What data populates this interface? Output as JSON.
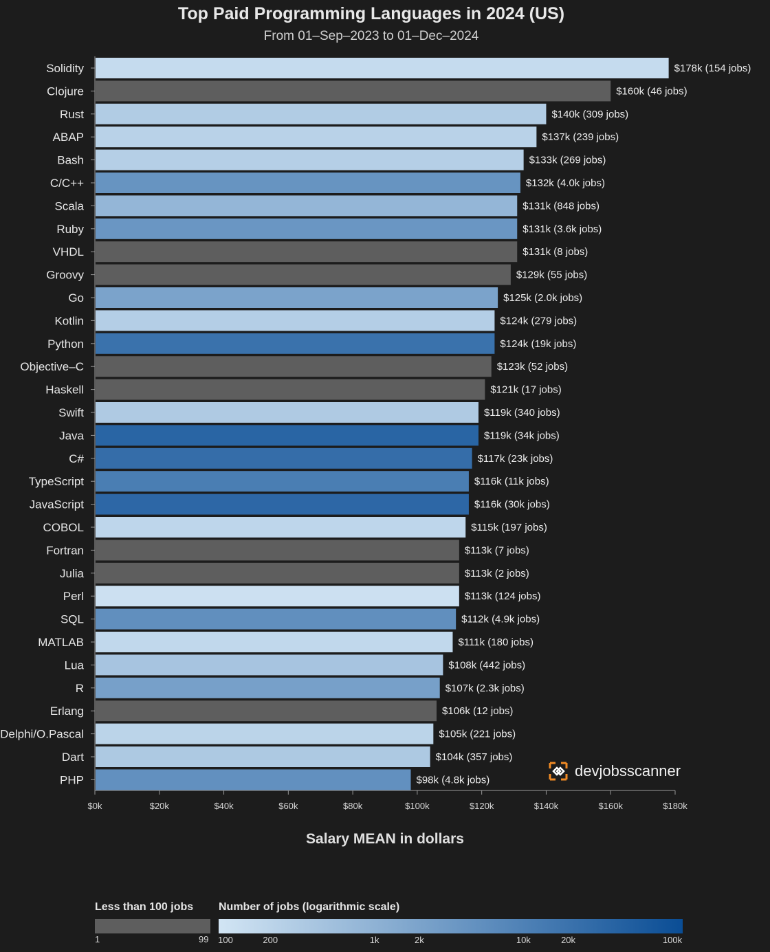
{
  "chart_data": {
    "type": "bar",
    "orientation": "horizontal",
    "title": "Top Paid Programming Languages in 2024 (US)",
    "subtitle": "From 01–Sep–2023 to 01–Dec–2024",
    "xlabel": "Salary MEAN in dollars",
    "xlim": [
      0,
      180000
    ],
    "x_ticks": [
      0,
      20000,
      40000,
      60000,
      80000,
      100000,
      120000,
      140000,
      160000,
      180000
    ],
    "x_tick_labels": [
      "$0k",
      "$20k",
      "$40k",
      "$60k",
      "$80k",
      "$100k",
      "$120k",
      "$140k",
      "$160k",
      "$180k"
    ],
    "categories": [
      "Solidity",
      "Clojure",
      "Rust",
      "ABAP",
      "Bash",
      "C/C++",
      "Scala",
      "Ruby",
      "VHDL",
      "Groovy",
      "Go",
      "Kotlin",
      "Python",
      "Objective–C",
      "Haskell",
      "Swift",
      "Java",
      "C#",
      "TypeScript",
      "JavaScript",
      "COBOL",
      "Fortran",
      "Julia",
      "Perl",
      "SQL",
      "MATLAB",
      "Lua",
      "R",
      "Erlang",
      "Delphi/O.Pascal",
      "Dart",
      "PHP"
    ],
    "values": [
      178000,
      160000,
      140000,
      137000,
      133000,
      132000,
      131000,
      131000,
      131000,
      129000,
      125000,
      124000,
      124000,
      123000,
      121000,
      119000,
      119000,
      117000,
      116000,
      116000,
      115000,
      113000,
      113000,
      113000,
      112000,
      111000,
      108000,
      107000,
      106000,
      105000,
      104000,
      98000
    ],
    "jobs": [
      154,
      46,
      309,
      239,
      269,
      4000,
      848,
      3600,
      8,
      55,
      2000,
      279,
      19000,
      52,
      17,
      340,
      34000,
      23000,
      11000,
      30000,
      197,
      7,
      2,
      124,
      4900,
      180,
      442,
      2300,
      12,
      221,
      357,
      4800
    ],
    "data_labels": [
      "$178k (154 jobs)",
      "$160k (46 jobs)",
      "$140k (309 jobs)",
      "$137k (239 jobs)",
      "$133k (269 jobs)",
      "$132k (4.0k jobs)",
      "$131k (848 jobs)",
      "$131k (3.6k jobs)",
      "$131k (8 jobs)",
      "$129k (55 jobs)",
      "$125k (2.0k jobs)",
      "$124k (279 jobs)",
      "$124k (19k jobs)",
      "$123k (52 jobs)",
      "$121k (17 jobs)",
      "$119k (340 jobs)",
      "$119k (34k jobs)",
      "$117k (23k jobs)",
      "$116k (11k jobs)",
      "$116k (30k jobs)",
      "$115k (197 jobs)",
      "$113k (7 jobs)",
      "$113k (2 jobs)",
      "$113k (124 jobs)",
      "$112k (4.9k jobs)",
      "$111k (180 jobs)",
      "$108k (442 jobs)",
      "$107k (2.3k jobs)",
      "$106k (12 jobs)",
      "$105k (221 jobs)",
      "$104k (357 jobs)",
      "$98k (4.8k jobs)"
    ],
    "low_jobs_threshold": 100,
    "colors": {
      "low_jobs": "#5e5e5e",
      "scale_start": "#d2e5f4",
      "scale_end": "#0a4d95"
    }
  },
  "branding": {
    "name": "devjobsscanner"
  },
  "legend": {
    "low_label": "Less than 100 jobs",
    "low_min": "1",
    "low_max": "99",
    "scale_label": "Number of jobs (logarithmic scale)",
    "scale_ticks": [
      {
        "value": 100,
        "label": "100"
      },
      {
        "value": 200,
        "label": "200"
      },
      {
        "value": 1000,
        "label": "1k"
      },
      {
        "value": 2000,
        "label": "2k"
      },
      {
        "value": 10000,
        "label": "10k"
      },
      {
        "value": 20000,
        "label": "20k"
      },
      {
        "value": 100000,
        "label": "100k"
      }
    ]
  }
}
